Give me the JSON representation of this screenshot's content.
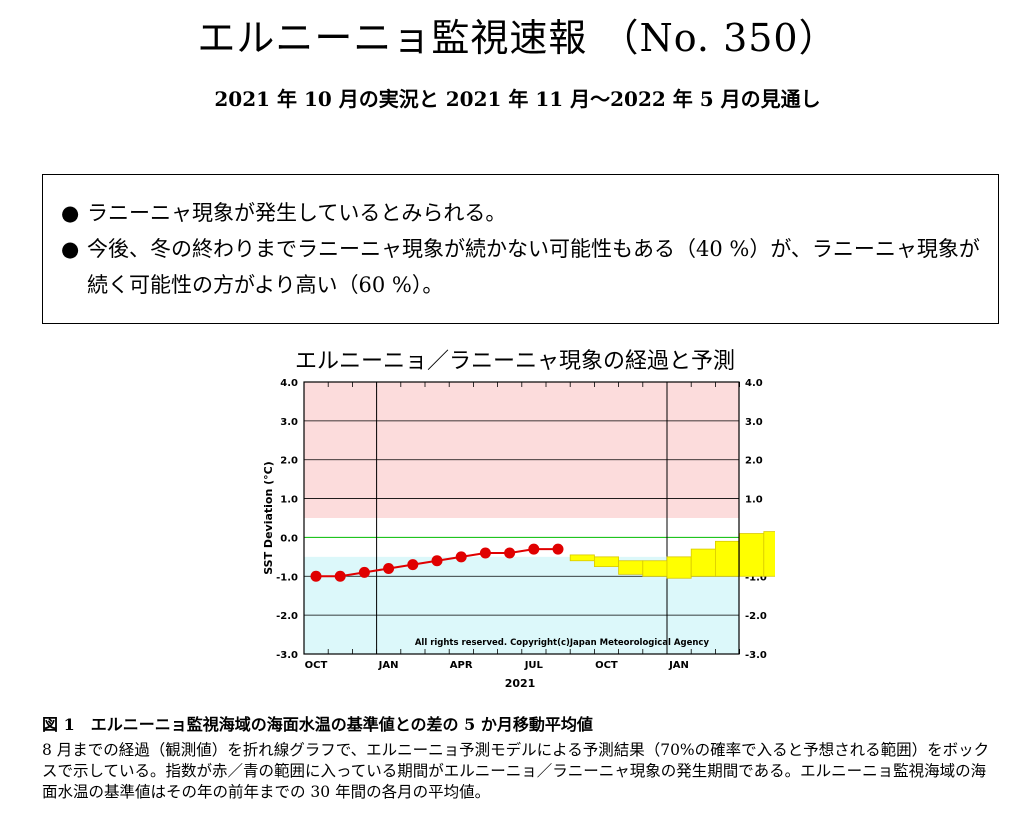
{
  "header": {
    "title": "エルニーニョ監視速報 （No. 350）",
    "subtitle": "2021 年 10 月の実況と 2021 年 11 月～2022 年 5 月の見通し"
  },
  "summary": {
    "bullet_glyph": "●",
    "items": [
      "ラニーニャ現象が発生しているとみられる。",
      "今後、冬の終わりまでラニーニャ現象が続かない可能性もある（40 %）が、ラニーニャ現象が続く可能性の方がより高い（60 %）。"
    ]
  },
  "chart_data": {
    "type": "line",
    "title": "エルニーニョ／ラニーニャ現象の経過と予測",
    "ylabel": "SST Deviation (°C)",
    "xlabel": "2021",
    "ylim": [
      -3.0,
      4.0
    ],
    "y_ticks": [
      "4.0",
      "3.0",
      "2.0",
      "1.0",
      "0.0",
      "-1.0",
      "-2.0",
      "-3.0"
    ],
    "x_ticks": [
      "OCT",
      "JAN",
      "APR",
      "JUL",
      "OCT",
      "JAN"
    ],
    "copyright": "All rights reserved. Copyright(c)Japan Meteorological Agency",
    "bands": [
      {
        "name": "el-nino-range",
        "from": 0.5,
        "to": 4.0,
        "color": "#fcdcdc"
      },
      {
        "name": "la-nina-range",
        "from": -3.0,
        "to": -0.5,
        "color": "#dcf8fa"
      }
    ],
    "observed": {
      "months": [
        "2020-10",
        "2020-11",
        "2020-12",
        "2021-01",
        "2021-02",
        "2021-03",
        "2021-04",
        "2021-05",
        "2021-06",
        "2021-07",
        "2021-08"
      ],
      "values": [
        -1.0,
        -1.0,
        -0.9,
        -0.8,
        -0.7,
        -0.6,
        -0.5,
        -0.4,
        -0.4,
        -0.3,
        -0.3
      ]
    },
    "forecast": {
      "months": [
        "2021-09",
        "2021-10",
        "2021-11",
        "2021-12",
        "2021-01",
        "2022-02",
        "2022-03",
        "2022-04",
        "2022-05"
      ],
      "low": [
        -0.6,
        -0.75,
        -0.95,
        -1.0,
        -1.05,
        -1.0,
        -1.0,
        -1.0,
        -1.0
      ],
      "high": [
        -0.45,
        -0.5,
        -0.6,
        -0.6,
        -0.5,
        -0.3,
        -0.1,
        0.1,
        0.15
      ]
    },
    "colors": {
      "observed_line": "#e00000",
      "forecast_fill": "#ffff00",
      "forecast_edge": "#d8c800",
      "zero_line": "#00bb00"
    }
  },
  "caption": {
    "head": "図 1　エルニーニョ監視海域の海面水温の基準値との差の 5 か月移動平均値",
    "body": "8 月までの経過（観測値）を折れ線グラフで、エルニーニョ予測モデルによる予測結果（70%の確率で入ると予想される範囲）をボックスで示している。指数が赤／青の範囲に入っている期間がエルニーニョ／ラニーニャ現象の発生期間である。エルニーニョ監視海域の海面水温の基準値はその年の前年までの 30 年間の各月の平均値。"
  }
}
